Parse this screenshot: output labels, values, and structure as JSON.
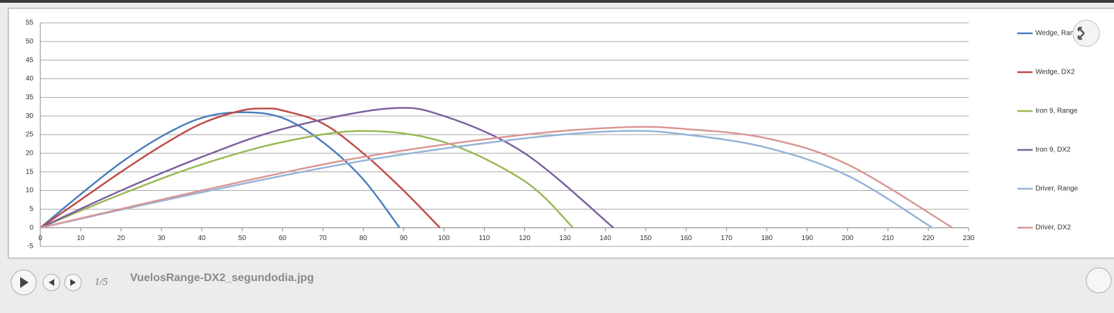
{
  "viewer": {
    "counter": "1/5",
    "filename": "VuelosRange-DX2_segundodia.jpg"
  },
  "chart_data": {
    "type": "line",
    "xlim": [
      0,
      230
    ],
    "xticks": [
      0,
      10,
      20,
      30,
      40,
      50,
      60,
      70,
      80,
      90,
      100,
      110,
      120,
      130,
      140,
      150,
      160,
      170,
      180,
      190,
      200,
      210,
      220,
      230
    ],
    "ylim": [
      -5,
      55
    ],
    "yticks": [
      -5,
      0,
      5,
      10,
      15,
      20,
      25,
      30,
      35,
      40,
      45,
      50,
      55
    ],
    "grid": true,
    "legend": "right",
    "series": [
      {
        "name": "Wedge, Range",
        "color": "#4a7ebb",
        "x": [
          0,
          10,
          20,
          30,
          40,
          50,
          60,
          70,
          80,
          89
        ],
        "values": [
          0,
          9,
          17.5,
          24.5,
          29.5,
          31,
          29.5,
          23,
          13,
          0
        ]
      },
      {
        "name": "Wedge, DX2",
        "color": "#be4b48",
        "x": [
          0,
          10,
          20,
          30,
          40,
          50,
          56,
          60,
          70,
          80,
          90,
          99
        ],
        "values": [
          0,
          7.5,
          15,
          22,
          28,
          31.5,
          32,
          31.5,
          28,
          20,
          10,
          0
        ]
      },
      {
        "name": "Iron 9, Range",
        "color": "#98b954",
        "x": [
          0,
          20,
          40,
          60,
          80,
          100,
          120,
          132
        ],
        "values": [
          0,
          9,
          17,
          23,
          26,
          23,
          12.5,
          0
        ]
      },
      {
        "name": "Iron 9, DX2",
        "color": "#7d60a0",
        "x": [
          0,
          20,
          40,
          60,
          86,
          100,
          120,
          142
        ],
        "values": [
          0,
          10,
          19,
          26.5,
          32,
          30,
          20,
          0
        ]
      },
      {
        "name": "Driver, Range",
        "color": "#95b3d7",
        "x": [
          0,
          40,
          80,
          120,
          145,
          160,
          180,
          200,
          221
        ],
        "values": [
          0,
          9.5,
          18,
          24,
          26,
          25,
          21.5,
          14,
          0
        ]
      },
      {
        "name": "Driver, DX2",
        "color": "#d99694",
        "x": [
          0,
          40,
          80,
          120,
          145,
          160,
          180,
          200,
          226
        ],
        "values": [
          0,
          10,
          19,
          25,
          27,
          26.5,
          24,
          17,
          0
        ]
      }
    ]
  }
}
